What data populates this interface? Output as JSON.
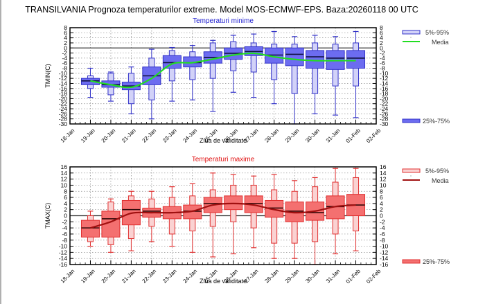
{
  "title": "TRANSILVANIA  Prognoza temperaturilor extreme.  Model MOS-ECMWF-EPS. Baza:20260118 00 UTC",
  "chart_data": [
    {
      "type": "boxplot",
      "id": "tmin",
      "title": "Temperaturi minime",
      "xlabel": "Ziua de validitate",
      "ylabel": "TMIN(C)",
      "ylim": [
        -30,
        8
      ],
      "yticks": [
        8,
        6,
        4,
        2,
        0,
        -2,
        -4,
        -6,
        -8,
        -10,
        -12,
        -14,
        -16,
        -18,
        -20,
        -22,
        -24,
        -26,
        -28,
        -30
      ],
      "x_tick_labels": [
        "18-Jan",
        "19-Jan",
        "20-Jan",
        "21-Jan",
        "22-Jan",
        "23-Jan",
        "24-Jan",
        "25-Jan",
        "26-Jan",
        "27-Jan",
        "28-Jan",
        "29-Jan",
        "30-Jan",
        "31-Jan",
        "01-Feb",
        "02-Feb"
      ],
      "grid": true,
      "zero_line": true,
      "colors": {
        "title": "#2020d0",
        "box_dark": "#6c6cf0",
        "box_light": "#d2d2f8",
        "edge": "#3232c8",
        "median": "#101040",
        "mean_line": "#22dd22"
      },
      "legend": {
        "placement": "right",
        "items": [
          {
            "label": "5%-95%",
            "kind": "light-box"
          },
          {
            "label": "Media",
            "kind": "line"
          },
          {
            "label": "25%-75%",
            "kind": "dark-box"
          }
        ]
      },
      "categories": [
        "19-Jan",
        "20-Jan",
        "21-Jan",
        "22-Jan",
        "23-Jan",
        "24-Jan",
        "25-Jan",
        "26-Jan",
        "27-Jan",
        "28-Jan",
        "29-Jan",
        "30-Jan",
        "31-Jan",
        "01-Feb"
      ],
      "whisker_max": [
        -8,
        -9.5,
        -7.5,
        -0.5,
        0.2,
        1,
        3,
        5,
        5.5,
        6.5,
        4.5,
        5,
        4.5,
        6.5
      ],
      "p95": [
        -11,
        -10,
        -10,
        -4,
        -1,
        -1.5,
        2,
        2.5,
        2,
        1.5,
        1.5,
        2,
        1.5,
        2
      ],
      "p75": [
        -12,
        -13,
        -13.5,
        -7.5,
        -3,
        -3.5,
        -1.5,
        0,
        0.5,
        0,
        0,
        -1,
        -1,
        -1
      ],
      "median": [
        -13,
        -14.5,
        -15,
        -11,
        -5.8,
        -5.8,
        -3.8,
        -2.1,
        -1.4,
        -2.8,
        -2.5,
        -3.5,
        -4,
        -4
      ],
      "p25": [
        -14.5,
        -15.5,
        -16.5,
        -14.5,
        -8,
        -7.5,
        -6,
        -4.5,
        -3,
        -6,
        -7,
        -8,
        -8.5,
        -8
      ],
      "p5": [
        -16,
        -18.5,
        -22,
        -20.5,
        -13,
        -12.5,
        -12,
        -9,
        -9.5,
        -12.5,
        -18,
        -18,
        -15,
        -15
      ],
      "whisker_min": [
        -19.5,
        -21,
        -26,
        -28,
        -21,
        -20.5,
        -25,
        -17.5,
        -19.5,
        -22,
        -30,
        -26,
        -26.5,
        -27.5
      ],
      "mean": [
        -13,
        -14.5,
        -15.5,
        -12,
        -6.3,
        -5.8,
        -4.4,
        -2.8,
        -2.1,
        -3.5,
        -4.5,
        -5,
        -5,
        -5
      ]
    },
    {
      "type": "boxplot",
      "id": "tmax",
      "title": "Temperaturi maxime",
      "xlabel": "Ziua de validitate",
      "ylabel": "TMAX(C)",
      "ylim": [
        -16,
        16
      ],
      "yticks": [
        16,
        14,
        12,
        10,
        8,
        6,
        4,
        2,
        0,
        -2,
        -4,
        -6,
        -8,
        -10,
        -12,
        -14,
        -16
      ],
      "x_tick_labels": [
        "18-Jan",
        "19-Jan",
        "20-Jan",
        "21-Jan",
        "22-Jan",
        "23-Jan",
        "24-Jan",
        "25-Jan",
        "26-Jan",
        "27-Jan",
        "28-Jan",
        "29-Jan",
        "30-Jan",
        "31-Jan",
        "01-Feb",
        "02-Feb"
      ],
      "grid": true,
      "zero_line": true,
      "colors": {
        "title": "#e01010",
        "box_dark": "#f47070",
        "box_light": "#fad2d2",
        "edge": "#e03030",
        "median": "#300808",
        "mean_line": "#a01010"
      },
      "legend": {
        "placement": "right",
        "items": [
          {
            "label": "5%-95%",
            "kind": "light-box"
          },
          {
            "label": "Media",
            "kind": "line"
          },
          {
            "label": "25%-75%",
            "kind": "dark-box"
          }
        ]
      },
      "categories": [
        "19-Jan",
        "20-Jan",
        "21-Jan",
        "22-Jan",
        "23-Jan",
        "24-Jan",
        "25-Jan",
        "26-Jan",
        "27-Jan",
        "28-Jan",
        "29-Jan",
        "30-Jan",
        "31-Jan",
        "01-Feb"
      ],
      "whisker_max": [
        1.5,
        5.5,
        8,
        8,
        9.5,
        10.5,
        14,
        13.5,
        13,
        13.5,
        11.5,
        12.5,
        15.5,
        15.5
      ],
      "p95": [
        0,
        4.5,
        6.5,
        5.5,
        6,
        6.5,
        8.5,
        10,
        10,
        8.5,
        8,
        9.5,
        11,
        12.5
      ],
      "p75": [
        -1.5,
        1.5,
        5,
        2.5,
        3,
        3.5,
        6,
        6.5,
        6.5,
        5,
        4.5,
        4.5,
        6.5,
        7
      ],
      "median": [
        -4,
        -1,
        2,
        1.5,
        1,
        1.5,
        4,
        4,
        4,
        2.5,
        1.5,
        1,
        3,
        3.5
      ],
      "p25": [
        -7,
        -7,
        -3,
        -0.5,
        -1,
        -1,
        1,
        2,
        1,
        -0.5,
        -2,
        -1.5,
        -1,
        0
      ],
      "p5": [
        -8.5,
        -9.5,
        -7.5,
        -3.5,
        -6,
        -5,
        -3.5,
        -2,
        -4,
        -9,
        -9,
        -8.5,
        -6,
        -5
      ],
      "whisker_min": [
        -10,
        -12,
        -11.5,
        -8.5,
        -10,
        -12,
        -13.5,
        -12.5,
        -10.5,
        -14,
        -14,
        -16,
        -12.5,
        -11.5
      ],
      "mean": [
        -4,
        -2,
        0.8,
        1,
        1,
        1.5,
        3.5,
        4,
        3.5,
        2,
        1,
        1.5,
        3,
        3.5
      ]
    }
  ]
}
